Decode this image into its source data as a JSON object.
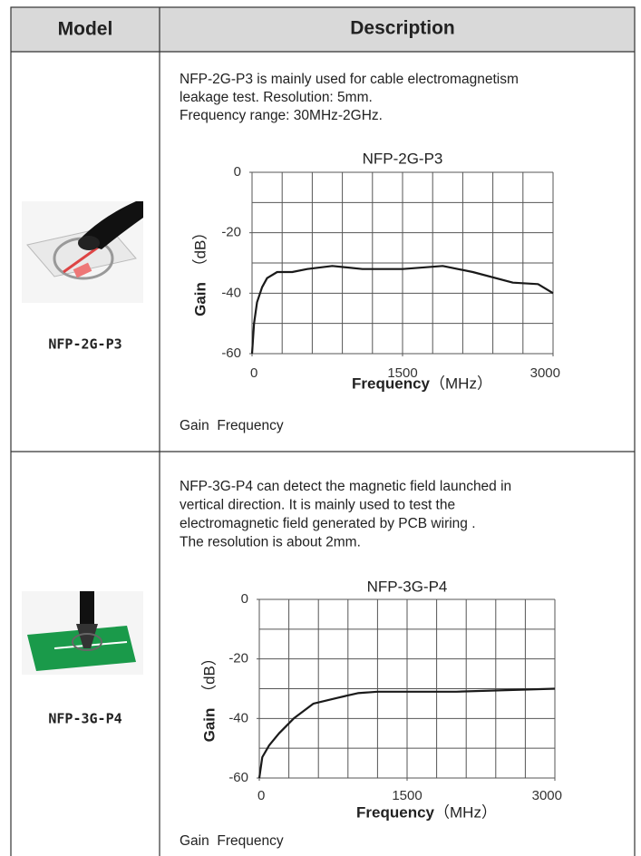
{
  "header": {
    "model": "Model",
    "description": "Description"
  },
  "rows": [
    {
      "model": "NFP-2G-P3",
      "description": [
        "NFP-2G-P3 is mainly used for cable electromagnetism",
        "leakage test. Resolution: 5mm.",
        "Frequency range: 30MHz-2GHz."
      ],
      "chart": {
        "type": "line",
        "title": "NFP-2G-P3",
        "x_label": "Frequency",
        "x_unit": "（MHz）",
        "y_label": "Gain",
        "y_unit": "（dB）",
        "x": [
          0,
          20,
          50,
          100,
          150,
          250,
          400,
          550,
          800,
          1100,
          1500,
          1900,
          2200,
          2600,
          2850,
          3000
        ],
        "values": [
          -60,
          -50,
          -43,
          -38,
          -35,
          -33,
          -33,
          -32,
          -31,
          -32,
          -32,
          -31,
          -33,
          -36.5,
          -37,
          -40
        ],
        "color": "#1a1a1a",
        "xlim": [
          0,
          3000
        ],
        "ylim": [
          -60,
          0
        ],
        "xticks": [
          0,
          1500,
          3000
        ],
        "yticks": [
          0,
          -20,
          -40,
          -60
        ],
        "grid_divisions": [
          10,
          6
        ]
      },
      "caption": "Gain  Frequency"
    },
    {
      "model": "NFP-3G-P4",
      "description": [
        "NFP-3G-P4 can detect the magnetic field launched in",
        "vertical direction. It is mainly used to test the",
        "electromagnetic field generated by PCB wiring .",
        "The resolution is about 2mm."
      ],
      "chart": {
        "type": "line",
        "title": "NFP-3G-P4",
        "x_label": "Frequency",
        "x_unit": "（MHz）",
        "y_label": "Gain",
        "y_unit": "（dB）",
        "x": [
          0,
          30,
          100,
          200,
          350,
          550,
          800,
          1000,
          1200,
          1600,
          2000,
          2500,
          3000
        ],
        "values": [
          -60,
          -53,
          -49,
          -45,
          -40,
          -35,
          -33,
          -31.5,
          -31,
          -31,
          -31,
          -30.5,
          -30
        ],
        "color": "#1a1a1a",
        "xlim": [
          0,
          3000
        ],
        "ylim": [
          -60,
          0
        ],
        "xticks": [
          0,
          1500,
          3000
        ],
        "yticks": [
          0,
          -20,
          -40,
          -60
        ],
        "grid_divisions": [
          10,
          6
        ]
      },
      "caption": "Gain  Frequency"
    }
  ]
}
